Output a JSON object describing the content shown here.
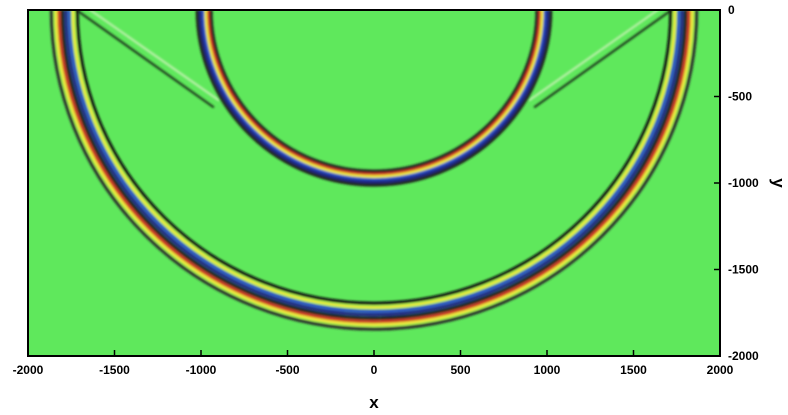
{
  "chart_data": {
    "type": "heatmap",
    "title": "",
    "xlabel": "x",
    "ylabel": "y",
    "xlim": [
      -2000,
      2000
    ],
    "ylim": [
      -2000,
      0
    ],
    "x_ticks": [
      -2000,
      -1500,
      -1000,
      -500,
      0,
      500,
      1000,
      1500,
      2000
    ],
    "x_tick_labels": [
      "-2000",
      "-1500",
      "-1000",
      "-500",
      "0",
      "500",
      "1000",
      "1500",
      "2000"
    ],
    "y_ticks": [
      0,
      -500,
      -1000,
      -1500,
      -2000
    ],
    "y_tick_labels": [
      "0",
      "-500",
      "-1000",
      "-1500",
      "-2000"
    ],
    "background_color": "#5fe85c",
    "colormap": [
      "#1d1d8c",
      "#2a6ed8",
      "#34c8d8",
      "#5fe85c",
      "#f0e040",
      "#d82020",
      "#101010"
    ],
    "wavefronts": [
      {
        "name": "outer",
        "center": [
          0,
          0
        ],
        "radius_x": 1740,
        "radius_y": 1720,
        "band": [
          {
            "offset": -25,
            "color": "#101010"
          },
          {
            "offset": 0,
            "color": "#f3ea3c"
          },
          {
            "offset": 22,
            "color": "#2a4fcf"
          },
          {
            "offset": 42,
            "color": "#1b1b86"
          },
          {
            "offset": 62,
            "color": "#181818"
          },
          {
            "offset": 82,
            "color": "#d62424"
          },
          {
            "offset": 100,
            "color": "#f3ea3c"
          },
          {
            "offset": 125,
            "color": "#2a2a2a"
          }
        ]
      },
      {
        "name": "inner",
        "center": [
          0,
          0
        ],
        "radius_x": 960,
        "radius_y": 950,
        "band": [
          {
            "offset": -18,
            "color": "#202020"
          },
          {
            "offset": 0,
            "color": "#d62424"
          },
          {
            "offset": 14,
            "color": "#f3ea3c"
          },
          {
            "offset": 30,
            "color": "#2a4fcf"
          },
          {
            "offset": 45,
            "color": "#1b1b86"
          },
          {
            "offset": 62,
            "color": "#202020"
          }
        ]
      }
    ],
    "head_waves": [
      {
        "from": [
          -1720,
          0
        ],
        "to": [
          -930,
          -560
        ]
      },
      {
        "from": [
          -1640,
          0
        ],
        "to": [
          -900,
          -520
        ]
      },
      {
        "from": [
          1720,
          0
        ],
        "to": [
          930,
          -560
        ]
      },
      {
        "from": [
          1640,
          0
        ],
        "to": [
          900,
          -520
        ]
      }
    ],
    "grid": false,
    "legend": "none"
  }
}
